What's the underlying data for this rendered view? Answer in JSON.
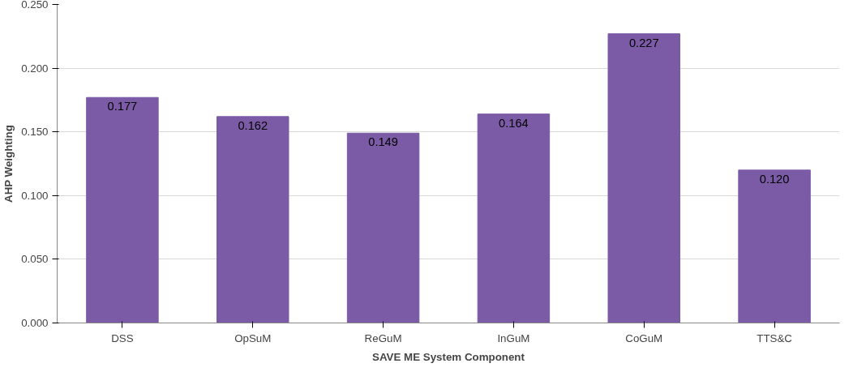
{
  "chart_data": {
    "type": "bar",
    "xlabel": "SAVE ME System Component",
    "ylabel": "AHP Weighting",
    "categories": [
      "DSS",
      "OpSuM",
      "ReGuM",
      "InGuM",
      "CoGuM",
      "TTS&C"
    ],
    "values": [
      0.177,
      0.162,
      0.149,
      0.164,
      0.227,
      0.12
    ],
    "color": "#7b5aa6",
    "ylim": [
      0,
      0.25
    ],
    "yticks": [
      {
        "value": 0,
        "label": "0.000"
      },
      {
        "value": 0.05,
        "label": "0.050"
      },
      {
        "value": 0.1,
        "label": "0.100"
      },
      {
        "value": 0.15,
        "label": "0.150"
      },
      {
        "value": 0.2,
        "label": "0.200"
      },
      {
        "value": 0.25,
        "label": "0.250"
      }
    ],
    "value_labels": [
      "0.177",
      "0.162",
      "0.149",
      "0.164",
      "0.227",
      "0.120"
    ],
    "grid": "y"
  }
}
